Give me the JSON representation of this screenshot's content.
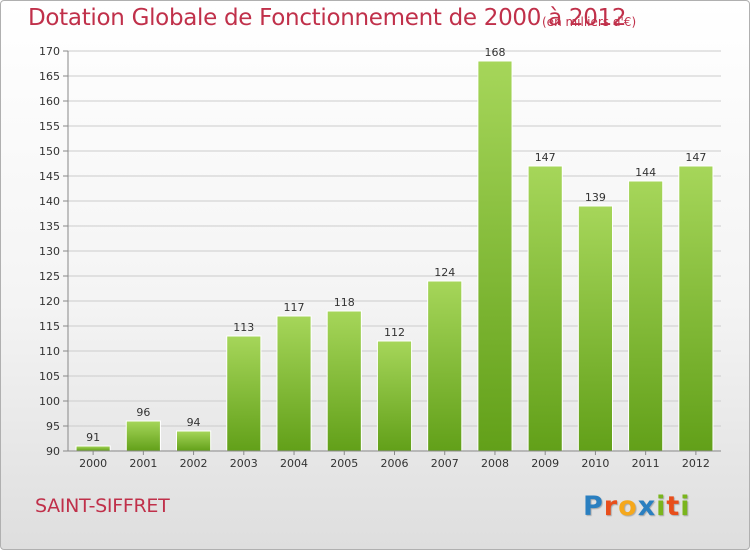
{
  "title": "Dotation Globale de Fonctionnement de 2000 à 2012",
  "subtitle": "(en milliers d'€)",
  "commune": "SAINT-SIFFRET",
  "logo": {
    "letters": [
      "P",
      "r",
      "o",
      "x",
      "i",
      "t",
      "i"
    ],
    "colors": [
      "#2a7fc0",
      "#e84e1b",
      "#f5a81c",
      "#2a7fc0",
      "#7ab51d",
      "#e84e1b",
      "#7ab51d"
    ]
  },
  "colors": {
    "title": "#c0304a",
    "bar_light": "#a6d65a",
    "bar_dark": "#62a019",
    "grid": "#cccccc"
  },
  "chart_data": {
    "type": "bar",
    "title": "Dotation Globale de Fonctionnement de 2000 à 2012",
    "subtitle": "(en milliers d'€)",
    "categories": [
      "2000",
      "2001",
      "2002",
      "2003",
      "2004",
      "2005",
      "2006",
      "2007",
      "2008",
      "2009",
      "2010",
      "2011",
      "2012"
    ],
    "values": [
      91,
      96,
      94,
      113,
      117,
      118,
      112,
      124,
      168,
      147,
      139,
      144,
      147
    ],
    "ylim": [
      90,
      170
    ],
    "yticks": [
      90,
      95,
      100,
      105,
      110,
      115,
      120,
      125,
      130,
      135,
      140,
      145,
      150,
      155,
      160,
      165,
      170
    ],
    "grid": true,
    "xlabel": "",
    "ylabel": ""
  }
}
